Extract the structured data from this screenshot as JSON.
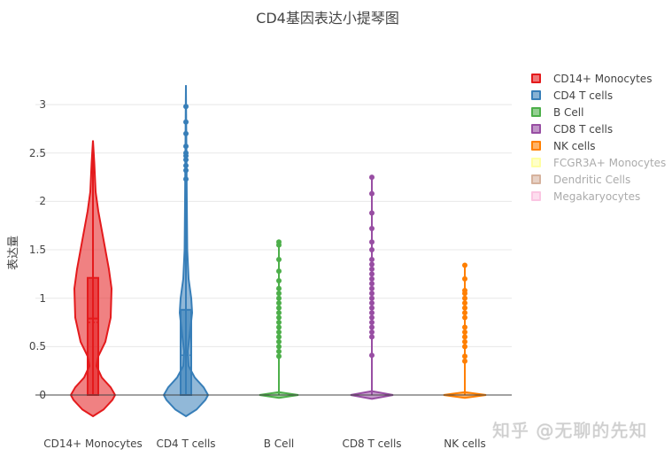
{
  "chart_data": {
    "type": "violin",
    "title": "CD4基因表达小提琴图",
    "xlabel": "",
    "ylabel": "表达量",
    "ylim": [
      -0.25,
      3.2
    ],
    "yticks": [
      "0",
      "0.5",
      "1",
      "1.5",
      "2",
      "2.5",
      "3"
    ],
    "grid": true,
    "legend_position": "right",
    "categories": [
      "CD14+ Monocytes",
      "CD4 T cells",
      "B Cell",
      "CD8 T cells",
      "NK cells"
    ],
    "series": [
      {
        "name": "CD14+ Monocytes",
        "color": "#e41a1c",
        "visible": true,
        "box": {
          "q1": 0,
          "median": 0.79,
          "mean": 0.75,
          "q3": 1.21,
          "upper_whisker": 2.63,
          "lower_whisker": 0
        },
        "max": 2.63,
        "min": 0
      },
      {
        "name": "CD4 T cells",
        "color": "#377eb8",
        "visible": true,
        "box": {
          "q1": 0,
          "median": 0.0,
          "mean": 0.41,
          "q3": 0.88,
          "upper_whisker": 2.2,
          "lower_whisker": 0
        },
        "outliers": [
          2.23,
          2.32,
          2.37,
          2.43,
          2.47,
          2.5,
          2.57,
          2.7,
          2.82,
          2.98
        ],
        "max": 3.2,
        "min": 0
      },
      {
        "name": "B Cell",
        "color": "#4daf4a",
        "visible": true,
        "box": {
          "q1": 0,
          "median": 0,
          "mean": 0,
          "q3": 0,
          "upper_whisker": 0,
          "lower_whisker": 0
        },
        "outliers": [
          0.4,
          0.45,
          0.5,
          0.55,
          0.6,
          0.65,
          0.7,
          0.75,
          0.8,
          0.85,
          0.9,
          0.95,
          1.0,
          1.05,
          1.1,
          1.18,
          1.28,
          1.4,
          1.55,
          1.58
        ],
        "max": 1.58,
        "min": 0
      },
      {
        "name": "CD8 T cells",
        "color": "#984ea3",
        "visible": true,
        "box": {
          "q1": 0,
          "median": 0,
          "mean": 0,
          "q3": 0,
          "upper_whisker": 0,
          "lower_whisker": 0
        },
        "outliers": [
          0.41,
          0.6,
          0.65,
          0.7,
          0.75,
          0.8,
          0.85,
          0.9,
          0.95,
          1.0,
          1.05,
          1.1,
          1.15,
          1.2,
          1.25,
          1.3,
          1.35,
          1.4,
          1.5,
          1.58,
          1.72,
          1.88,
          2.08,
          2.25
        ],
        "max": 2.27,
        "min": 0
      },
      {
        "name": "NK cells",
        "color": "#ff7f00",
        "visible": true,
        "box": {
          "q1": 0,
          "median": 0,
          "mean": 0,
          "q3": 0,
          "upper_whisker": 0,
          "lower_whisker": 0
        },
        "outliers": [
          0.35,
          0.4,
          0.5,
          0.55,
          0.6,
          0.65,
          0.7,
          0.8,
          0.85,
          0.9,
          0.95,
          1.0,
          1.05,
          1.08,
          1.2,
          1.34
        ],
        "max": 1.34,
        "min": 0
      },
      {
        "name": "FCGR3A+ Monocytes",
        "color": "#ffff33",
        "visible": false
      },
      {
        "name": "Dendritic Cells",
        "color": "#a65628",
        "visible": false
      },
      {
        "name": "Megakaryocytes",
        "color": "#f781bf",
        "visible": false
      }
    ]
  },
  "title": "CD4基因表达小提琴图",
  "yaxis": {
    "label": "表达量",
    "ticks": [
      "0",
      "0.5",
      "1",
      "1.5",
      "2",
      "2.5",
      "3"
    ]
  },
  "xaxis": {
    "ticks": [
      "CD14+ Monocytes",
      "CD4 T cells",
      "B Cell",
      "CD8 T cells",
      "NK cells"
    ]
  },
  "legend": {
    "items": [
      {
        "label": "CD14+ Monocytes",
        "color": "#e41a1c",
        "visible": true
      },
      {
        "label": "CD4 T cells",
        "color": "#377eb8",
        "visible": true
      },
      {
        "label": "B Cell",
        "color": "#4daf4a",
        "visible": true
      },
      {
        "label": "CD8 T cells",
        "color": "#984ea3",
        "visible": true
      },
      {
        "label": "NK cells",
        "color": "#ff7f00",
        "visible": true
      },
      {
        "label": "FCGR3A+ Monocytes",
        "color": "#ffff33",
        "visible": false
      },
      {
        "label": "Dendritic Cells",
        "color": "#a65628",
        "visible": false
      },
      {
        "label": "Megakaryocytes",
        "color": "#f781bf",
        "visible": false
      }
    ]
  },
  "watermark": "知乎 @无聊的先知"
}
